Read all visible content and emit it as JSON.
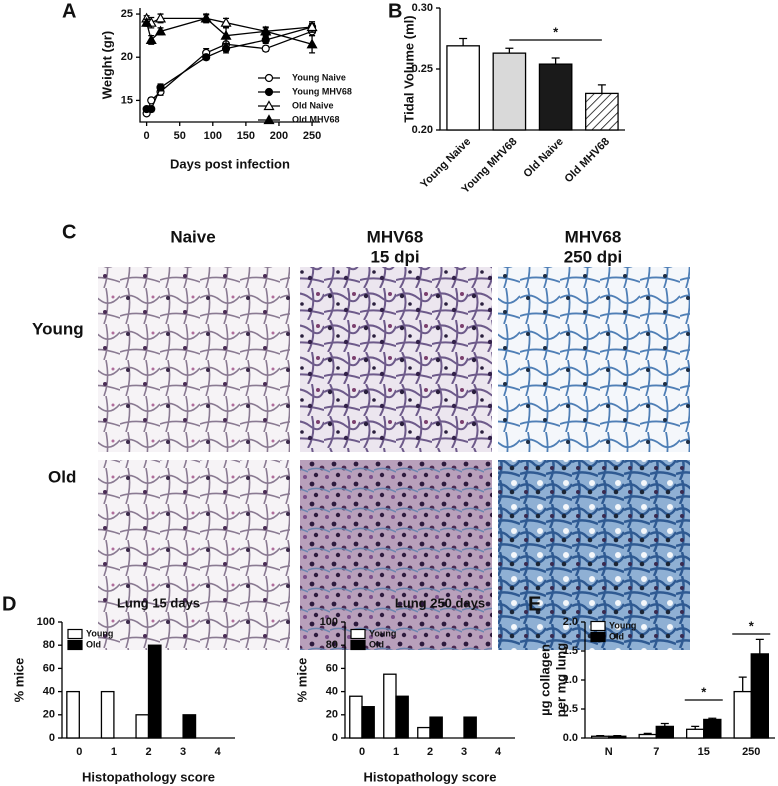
{
  "panel_labels": [
    "A",
    "B",
    "C",
    "D",
    "E"
  ],
  "micrographs": {
    "columns": [
      [
        "Naive"
      ],
      [
        "MHV68",
        "15 dpi"
      ],
      [
        "MHV68",
        "250 dpi"
      ]
    ],
    "rows": [
      "Young",
      "Old"
    ]
  },
  "chart_data": [
    {
      "type": "line",
      "xlabel": "Days post infection",
      "ylabel": "Weight (gr)",
      "x": [
        0,
        7,
        21,
        90,
        120,
        180,
        250
      ],
      "xlim": [
        -10,
        262
      ],
      "xticks": [
        0,
        50,
        100,
        150,
        200,
        250
      ],
      "ylim": [
        12.5,
        25.7
      ],
      "yticks": [
        15,
        20,
        25
      ],
      "legend": "lower right",
      "series": [
        {
          "name": "Young Naive",
          "color": "#000000",
          "marker": "circle",
          "filled": false,
          "values": [
            13.5,
            15,
            16,
            20.5,
            21.5,
            21,
            23
          ],
          "errors": [
            0.2,
            0.3,
            0.4,
            0.5,
            0.8,
            0.3,
            0.5
          ]
        },
        {
          "name": "Young MHV68",
          "color": "#000000",
          "marker": "circle",
          "filled": true,
          "values": [
            14,
            14,
            16.5,
            20,
            21,
            22,
            23.5
          ],
          "errors": [
            0.2,
            0.3,
            0.4,
            0.3,
            0.5,
            0.4,
            0.6
          ]
        },
        {
          "name": "Old Naive",
          "color": "#000000",
          "marker": "triangle",
          "filled": false,
          "values": [
            24.5,
            24,
            24.5,
            24.5,
            24,
            23,
            23.5
          ],
          "errors": [
            0.3,
            0.6,
            0.5,
            0.4,
            0.5,
            0.4,
            0.4
          ]
        },
        {
          "name": "Old MHV68",
          "color": "#000000",
          "marker": "triangle",
          "filled": true,
          "values": [
            24,
            22,
            23,
            24.5,
            22.5,
            23,
            21.5
          ],
          "errors": [
            0.4,
            0.5,
            0.4,
            0.5,
            0.9,
            0.5,
            1.0
          ]
        }
      ]
    },
    {
      "type": "bar",
      "ylabel": "Tidal Volume (ml)",
      "categories": [
        "Young Naive",
        "Young MHV68",
        "Old Naive",
        "Old MHV68"
      ],
      "values": [
        0.269,
        0.263,
        0.254,
        0.23
      ],
      "errors": [
        0.006,
        0.004,
        0.005,
        0.007
      ],
      "colors": [
        "#ffffff",
        "#d9d9d9",
        "#1a1a1a",
        "#ffffff"
      ],
      "hatch": [
        false,
        false,
        false,
        true
      ],
      "ylim": [
        0.2,
        0.3
      ],
      "yticks": [
        {
          "value": 0.2,
          "label": "0.20"
        },
        {
          "value": 0.25,
          "label": "0.25"
        },
        {
          "value": 0.3,
          "label": "0.30"
        }
      ],
      "annotations": [
        "*"
      ]
    },
    {
      "type": "bar",
      "title": "Lung 15 days",
      "xlabel": "Histopathology score",
      "ylabel": "% mice",
      "categories": [
        "0",
        "1",
        "2",
        "3",
        "4"
      ],
      "ylim": [
        0,
        100
      ],
      "yticks": [
        0,
        20,
        40,
        60,
        80,
        100
      ],
      "legend": "upper left",
      "series": [
        {
          "name": "Young",
          "color": "#ffffff",
          "values": [
            40,
            40,
            20,
            0,
            0
          ]
        },
        {
          "name": "Old",
          "color": "#000000",
          "values": [
            0,
            0,
            80,
            20,
            0
          ]
        }
      ]
    },
    {
      "type": "bar",
      "title": "Lung 250 days",
      "xlabel": "Histopathology score",
      "ylabel": "% mice",
      "categories": [
        "0",
        "1",
        "2",
        "3",
        "4"
      ],
      "ylim": [
        0,
        100
      ],
      "yticks": [
        0,
        20,
        40,
        60,
        80,
        100
      ],
      "legend": "upper left",
      "series": [
        {
          "name": "Young",
          "color": "#ffffff",
          "values": [
            36,
            55,
            9,
            0,
            0
          ]
        },
        {
          "name": "Old",
          "color": "#000000",
          "values": [
            27,
            36,
            18,
            18,
            0
          ]
        }
      ]
    },
    {
      "type": "bar",
      "ylabel": [
        "µg collagen",
        "per mg lung"
      ],
      "categories": [
        "N",
        "7",
        "15",
        "250"
      ],
      "ylim": [
        0,
        2
      ],
      "yticks": [
        {
          "value": 0,
          "label": "0.0"
        },
        {
          "value": 0.5,
          "label": "0.5"
        },
        {
          "value": 1,
          "label": "1.0"
        },
        {
          "value": 1.5,
          "label": "1.5"
        },
        {
          "value": 2,
          "label": "2.0"
        }
      ],
      "legend": "upper left",
      "series": [
        {
          "name": "Young",
          "color": "#ffffff",
          "values": [
            0.03,
            0.06,
            0.15,
            0.8
          ],
          "errors": [
            0.01,
            0.02,
            0.05,
            0.25
          ]
        },
        {
          "name": "Old",
          "color": "#000000",
          "values": [
            0.03,
            0.2,
            0.32,
            1.45
          ],
          "errors": [
            0.01,
            0.05,
            0.02,
            0.25
          ]
        }
      ],
      "annotations": [
        "*",
        "*"
      ]
    }
  ]
}
